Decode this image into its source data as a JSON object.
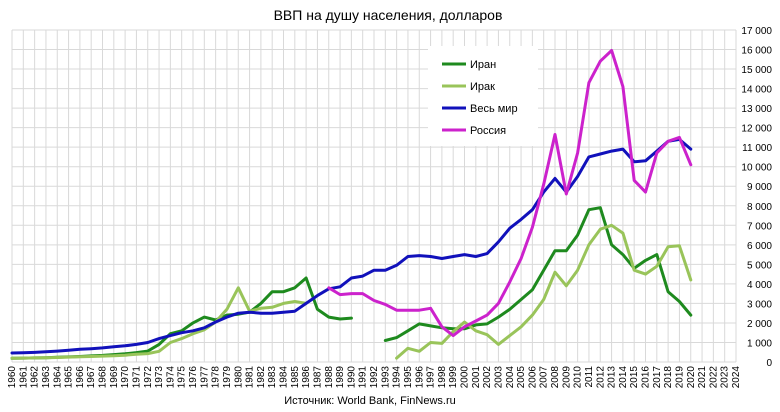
{
  "chart_data": {
    "type": "line",
    "title": "ВВП на душу населения, долларов",
    "source": "Источник: World Bank, FinNews.ru",
    "xlabel": "",
    "ylabel": "",
    "xlim": [
      1960,
      2024
    ],
    "ylim": [
      0,
      17000
    ],
    "yticks": [
      0,
      1000,
      2000,
      3000,
      4000,
      5000,
      6000,
      7000,
      8000,
      9000,
      10000,
      11000,
      12000,
      13000,
      14000,
      15000,
      16000,
      17000
    ],
    "ytick_labels": [
      "0",
      "1 000",
      "2 000",
      "3 000",
      "4 000",
      "5 000",
      "6 000",
      "7 000",
      "8 000",
      "9 000",
      "10 000",
      "11 000",
      "12 000",
      "13 000",
      "14 000",
      "15 000",
      "16 000",
      "17 000"
    ],
    "grid": true,
    "legend_position": "top-left-inside",
    "series": [
      {
        "name": "Иран",
        "color": "#1e8a1e",
        "values": [
          [
            1960,
            190
          ],
          [
            1961,
            200
          ],
          [
            1962,
            210
          ],
          [
            1963,
            220
          ],
          [
            1964,
            240
          ],
          [
            1965,
            260
          ],
          [
            1966,
            280
          ],
          [
            1967,
            310
          ],
          [
            1968,
            340
          ],
          [
            1969,
            380
          ],
          [
            1970,
            420
          ],
          [
            1971,
            480
          ],
          [
            1972,
            560
          ],
          [
            1973,
            900
          ],
          [
            1974,
            1450
          ],
          [
            1975,
            1600
          ],
          [
            1976,
            2000
          ],
          [
            1977,
            2300
          ],
          [
            1978,
            2150
          ],
          [
            1979,
            2400
          ],
          [
            1980,
            2450
          ],
          [
            1981,
            2550
          ],
          [
            1982,
            3000
          ],
          [
            1983,
            3600
          ],
          [
            1984,
            3600
          ],
          [
            1985,
            3800
          ],
          [
            1986,
            4300
          ],
          [
            1987,
            2700
          ],
          [
            1988,
            2300
          ],
          [
            1989,
            2200
          ],
          [
            1990,
            2250
          ],
          null,
          [
            1993,
            1100
          ],
          [
            1994,
            1250
          ],
          [
            1995,
            1600
          ],
          [
            1996,
            1950
          ],
          [
            1997,
            1850
          ],
          [
            1998,
            1750
          ],
          [
            1999,
            1700
          ],
          [
            2000,
            1700
          ],
          [
            2001,
            1900
          ],
          [
            2002,
            1950
          ],
          [
            2003,
            2300
          ],
          [
            2004,
            2700
          ],
          [
            2005,
            3200
          ],
          [
            2006,
            3700
          ],
          [
            2007,
            4700
          ],
          [
            2008,
            5700
          ],
          [
            2009,
            5700
          ],
          [
            2010,
            6500
          ],
          [
            2011,
            7800
          ],
          [
            2012,
            7900
          ],
          [
            2013,
            6000
          ],
          [
            2014,
            5500
          ],
          [
            2015,
            4800
          ],
          [
            2016,
            5200
          ],
          [
            2017,
            5500
          ],
          [
            2018,
            3600
          ],
          [
            2019,
            3100
          ],
          [
            2020,
            2400
          ]
        ]
      },
      {
        "name": "Ирак",
        "color": "#99c45a",
        "values": [
          [
            1960,
            190
          ],
          [
            1961,
            200
          ],
          [
            1962,
            210
          ],
          [
            1963,
            220
          ],
          [
            1964,
            230
          ],
          [
            1965,
            250
          ],
          [
            1966,
            270
          ],
          [
            1967,
            280
          ],
          [
            1968,
            300
          ],
          [
            1969,
            320
          ],
          [
            1970,
            350
          ],
          [
            1971,
            400
          ],
          [
            1972,
            430
          ],
          [
            1973,
            550
          ],
          [
            1974,
            1000
          ],
          [
            1975,
            1200
          ],
          [
            1976,
            1450
          ],
          [
            1977,
            1650
          ],
          [
            1978,
            2050
          ],
          [
            1979,
            2700
          ],
          [
            1980,
            3800
          ],
          [
            1981,
            2600
          ],
          [
            1982,
            2750
          ],
          [
            1983,
            2800
          ],
          [
            1984,
            3000
          ],
          [
            1985,
            3100
          ],
          [
            1986,
            3000
          ],
          null,
          [
            1994,
            200
          ],
          [
            1995,
            700
          ],
          [
            1996,
            550
          ],
          [
            1997,
            1000
          ],
          [
            1998,
            950
          ],
          [
            1999,
            1550
          ],
          [
            2000,
            2050
          ],
          [
            2001,
            1600
          ],
          [
            2002,
            1400
          ],
          [
            2003,
            900
          ],
          [
            2004,
            1350
          ],
          [
            2005,
            1800
          ],
          [
            2006,
            2400
          ],
          [
            2007,
            3200
          ],
          [
            2008,
            4600
          ],
          [
            2009,
            3900
          ],
          [
            2010,
            4700
          ],
          [
            2011,
            6000
          ],
          [
            2012,
            6800
          ],
          [
            2013,
            7000
          ],
          [
            2014,
            6600
          ],
          [
            2015,
            4700
          ],
          [
            2016,
            4500
          ],
          [
            2017,
            4900
          ],
          [
            2018,
            5900
          ],
          [
            2019,
            5950
          ],
          [
            2020,
            4200
          ]
        ]
      },
      {
        "name": "Весь мир",
        "color": "#1111bb",
        "values": [
          [
            1960,
            460
          ],
          [
            1961,
            470
          ],
          [
            1962,
            490
          ],
          [
            1963,
            520
          ],
          [
            1964,
            560
          ],
          [
            1965,
            600
          ],
          [
            1966,
            650
          ],
          [
            1967,
            680
          ],
          [
            1968,
            720
          ],
          [
            1969,
            780
          ],
          [
            1970,
            830
          ],
          [
            1971,
            900
          ],
          [
            1972,
            1000
          ],
          [
            1973,
            1200
          ],
          [
            1974,
            1350
          ],
          [
            1975,
            1500
          ],
          [
            1976,
            1600
          ],
          [
            1977,
            1750
          ],
          [
            1978,
            2050
          ],
          [
            1979,
            2300
          ],
          [
            1980,
            2500
          ],
          [
            1981,
            2550
          ],
          [
            1982,
            2500
          ],
          [
            1983,
            2500
          ],
          [
            1984,
            2550
          ],
          [
            1985,
            2600
          ],
          [
            1986,
            3000
          ],
          [
            1987,
            3400
          ],
          [
            1988,
            3750
          ],
          [
            1989,
            3850
          ],
          [
            1990,
            4300
          ],
          [
            1991,
            4400
          ],
          [
            1992,
            4700
          ],
          [
            1993,
            4700
          ],
          [
            1994,
            4950
          ],
          [
            1995,
            5400
          ],
          [
            1996,
            5450
          ],
          [
            1997,
            5400
          ],
          [
            1998,
            5300
          ],
          [
            1999,
            5400
          ],
          [
            2000,
            5500
          ],
          [
            2001,
            5400
          ],
          [
            2002,
            5550
          ],
          [
            2003,
            6150
          ],
          [
            2004,
            6850
          ],
          [
            2005,
            7300
          ],
          [
            2006,
            7800
          ],
          [
            2007,
            8700
          ],
          [
            2008,
            9400
          ],
          [
            2009,
            8700
          ],
          [
            2010,
            9500
          ],
          [
            2011,
            10500
          ],
          [
            2012,
            10650
          ],
          [
            2013,
            10800
          ],
          [
            2014,
            10900
          ],
          [
            2015,
            10250
          ],
          [
            2016,
            10300
          ],
          [
            2017,
            10800
          ],
          [
            2018,
            11300
          ],
          [
            2019,
            11400
          ],
          [
            2020,
            10900
          ]
        ]
      },
      {
        "name": "Россия",
        "color": "#cc22cc",
        "values": [
          [
            1988,
            3800
          ],
          [
            1989,
            3450
          ],
          [
            1990,
            3500
          ],
          [
            1991,
            3500
          ],
          [
            1992,
            3150
          ],
          [
            1993,
            2950
          ],
          [
            1994,
            2650
          ],
          [
            1995,
            2650
          ],
          [
            1996,
            2650
          ],
          [
            1997,
            2750
          ],
          [
            1998,
            1800
          ],
          [
            1999,
            1350
          ],
          [
            2000,
            1800
          ],
          [
            2001,
            2100
          ],
          [
            2002,
            2400
          ],
          [
            2003,
            3000
          ],
          [
            2004,
            4100
          ],
          [
            2005,
            5300
          ],
          [
            2006,
            6900
          ],
          [
            2007,
            9100
          ],
          [
            2008,
            11650
          ],
          [
            2009,
            8600
          ],
          [
            2010,
            10700
          ],
          [
            2011,
            14300
          ],
          [
            2012,
            15400
          ],
          [
            2013,
            15950
          ],
          [
            2014,
            14100
          ],
          [
            2015,
            9300
          ],
          [
            2016,
            8700
          ],
          [
            2017,
            10700
          ],
          [
            2018,
            11300
          ],
          [
            2019,
            11500
          ],
          [
            2020,
            10100
          ]
        ]
      }
    ]
  }
}
